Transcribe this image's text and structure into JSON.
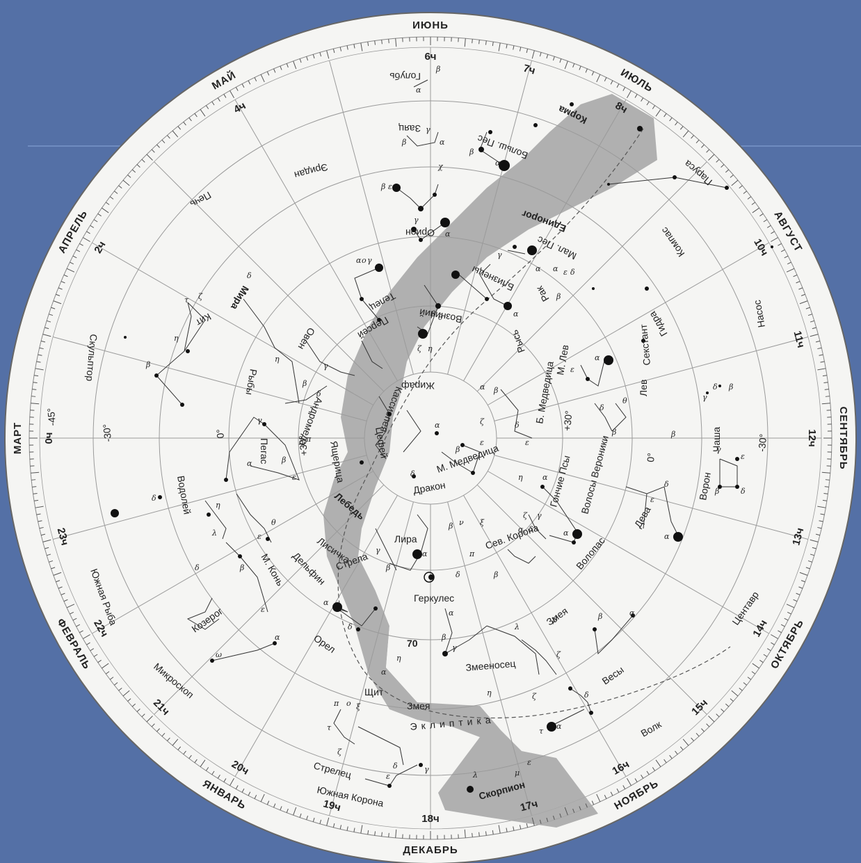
{
  "colors": {
    "background": "#5470a6",
    "map_fill": "#f5f5f3",
    "milky_way": "#a8a8a8",
    "grid": "#9a9a9a",
    "stars": "#111111",
    "accent_line": "#7896c8"
  },
  "months": [
    {
      "label": "ИЮНЬ",
      "deg": 0
    },
    {
      "label": "ИЮЛЬ",
      "deg": 30
    },
    {
      "label": "АВГУСТ",
      "deg": 60
    },
    {
      "label": "СЕНТЯБРЬ",
      "deg": 90
    },
    {
      "label": "ОКТЯБРЬ",
      "deg": 120
    },
    {
      "label": "НОЯБРЬ",
      "deg": 150
    },
    {
      "label": "ДЕКАБРЬ",
      "deg": 180
    },
    {
      "label": "ЯНВАРЬ",
      "deg": 210
    },
    {
      "label": "ФЕВРАЛЬ",
      "deg": 240
    },
    {
      "label": "МАРТ",
      "deg": 270
    },
    {
      "label": "АПРЕЛЬ",
      "deg": 300
    },
    {
      "label": "МАЙ",
      "deg": 330
    }
  ],
  "hours": [
    {
      "label": "6ч",
      "deg": 0
    },
    {
      "label": "7ч",
      "deg": 15
    },
    {
      "label": "8ч",
      "deg": 30
    },
    {
      "label": "10ч",
      "deg": 60
    },
    {
      "label": "11ч",
      "deg": 75
    },
    {
      "label": "12ч",
      "deg": 90
    },
    {
      "label": "13ч",
      "deg": 105
    },
    {
      "label": "14ч",
      "deg": 120
    },
    {
      "label": "15ч",
      "deg": 135
    },
    {
      "label": "16ч",
      "deg": 150
    },
    {
      "label": "17ч",
      "deg": 165
    },
    {
      "label": "18ч",
      "deg": 180
    },
    {
      "label": "19ч",
      "deg": 195
    },
    {
      "label": "20ч",
      "deg": 210
    },
    {
      "label": "21ч",
      "deg": 225
    },
    {
      "label": "22ч",
      "deg": 240
    },
    {
      "label": "23ч",
      "deg": 255
    },
    {
      "label": "0ч",
      "deg": 270
    },
    {
      "label": "2ч",
      "deg": 300
    },
    {
      "label": "4ч",
      "deg": 330
    }
  ],
  "declinations": [
    {
      "label": "+30°",
      "where": "right-inner"
    },
    {
      "label": "0°",
      "where": "right-middle"
    },
    {
      "label": "-30°",
      "where": "right-outer"
    },
    {
      "label": "+30°",
      "where": "left-inner"
    },
    {
      "label": "0°",
      "where": "left-middle"
    },
    {
      "label": "-30°",
      "where": "left-outer"
    },
    {
      "label": "-45°",
      "where": "left-edge"
    }
  ],
  "constellations": [
    "Голубь",
    "Заяц",
    "Больш. Пес",
    "Корма",
    "Паруса",
    "Компас",
    "Эридан",
    "Печь",
    "Орион",
    "Единорог",
    "Мал. Пес",
    "Близнецы",
    "Рак",
    "Гидра",
    "Насос",
    "Секстант",
    "Кит",
    "Мира",
    "Овен",
    "Телец",
    "Возничий",
    "Персей",
    "Рысь",
    "Лев",
    "Чаша",
    "Скульптор",
    "Рыбы",
    "Андромеда",
    "Кассиопея",
    "Жираф",
    "М. Медведица",
    "Б. Медведица",
    "М. Лев",
    "Цефей",
    "Ящерица",
    "Пегас",
    "Гончие Псы",
    "Волосы Вероники",
    "Ворон",
    "Дева",
    "Водолей",
    "Дракон",
    "Лебедь",
    "Лира",
    "Сев. Корона",
    "Волопас",
    "М. Конь",
    "Дельфин",
    "Лисичка",
    "Стрела",
    "Геркулес",
    "Змея",
    "Южная Рыба",
    "Козерог",
    "Орел",
    "Змееносец",
    "Весы",
    "Центавр",
    "Микроскоп",
    "Щит",
    "Волк",
    "Стрелец",
    "Южная Корона",
    "Скорпион",
    "Эклиптика"
  ],
  "numbers": {
    "star_70": "70"
  }
}
